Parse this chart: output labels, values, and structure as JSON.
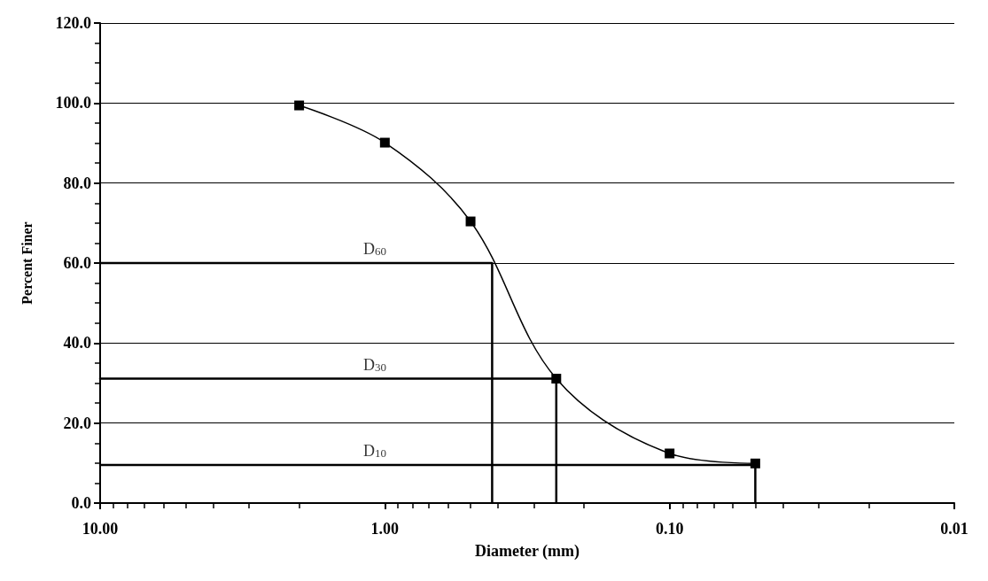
{
  "chart_data": {
    "type": "line",
    "xlabel": "Diameter (mm)",
    "ylabel": "Percent Finer",
    "log": "x",
    "xlim": [
      10,
      0.01
    ],
    "xticks": [
      {
        "value": 10,
        "label": "10.00"
      },
      {
        "value": 1,
        "label": "1.00"
      },
      {
        "value": 0.1,
        "label": "0.10"
      },
      {
        "value": 0.01,
        "label": "0.01"
      }
    ],
    "ylim": [
      0,
      120
    ],
    "yticks": [
      {
        "value": 0,
        "label": "0.0"
      },
      {
        "value": 20,
        "label": "20.0"
      },
      {
        "value": 40,
        "label": "40.0"
      },
      {
        "value": 60,
        "label": "60.0"
      },
      {
        "value": 80,
        "label": "80.0"
      },
      {
        "value": 100,
        "label": "100.0"
      },
      {
        "value": 120,
        "label": "120.0"
      }
    ],
    "grid": "y",
    "line_style": "solid",
    "series": [
      {
        "color": "#000000",
        "marker": "square",
        "x": [
          2.0,
          1.0,
          0.5,
          0.25,
          0.1,
          0.05
        ],
        "values": [
          99.4,
          90.1,
          70.4,
          31.1,
          12.4,
          9.9
        ]
      },
      {
        "name": "D$_{60}$",
        "color": "#000000",
        "marker": "none",
        "x": [
          10,
          0.42,
          0.42
        ],
        "values": [
          60,
          60,
          0
        ]
      },
      {
        "name": "D$_{30}$",
        "color": "#000000",
        "marker": "none",
        "x": [
          10,
          0.25,
          0.25
        ],
        "values": [
          31.1,
          31.1,
          0
        ]
      },
      {
        "name": "D$_{10}$",
        "color": "#000000",
        "marker": "none",
        "x": [
          10,
          0.05,
          0.05
        ],
        "values": [
          9.5,
          9.5,
          0
        ]
      }
    ]
  }
}
